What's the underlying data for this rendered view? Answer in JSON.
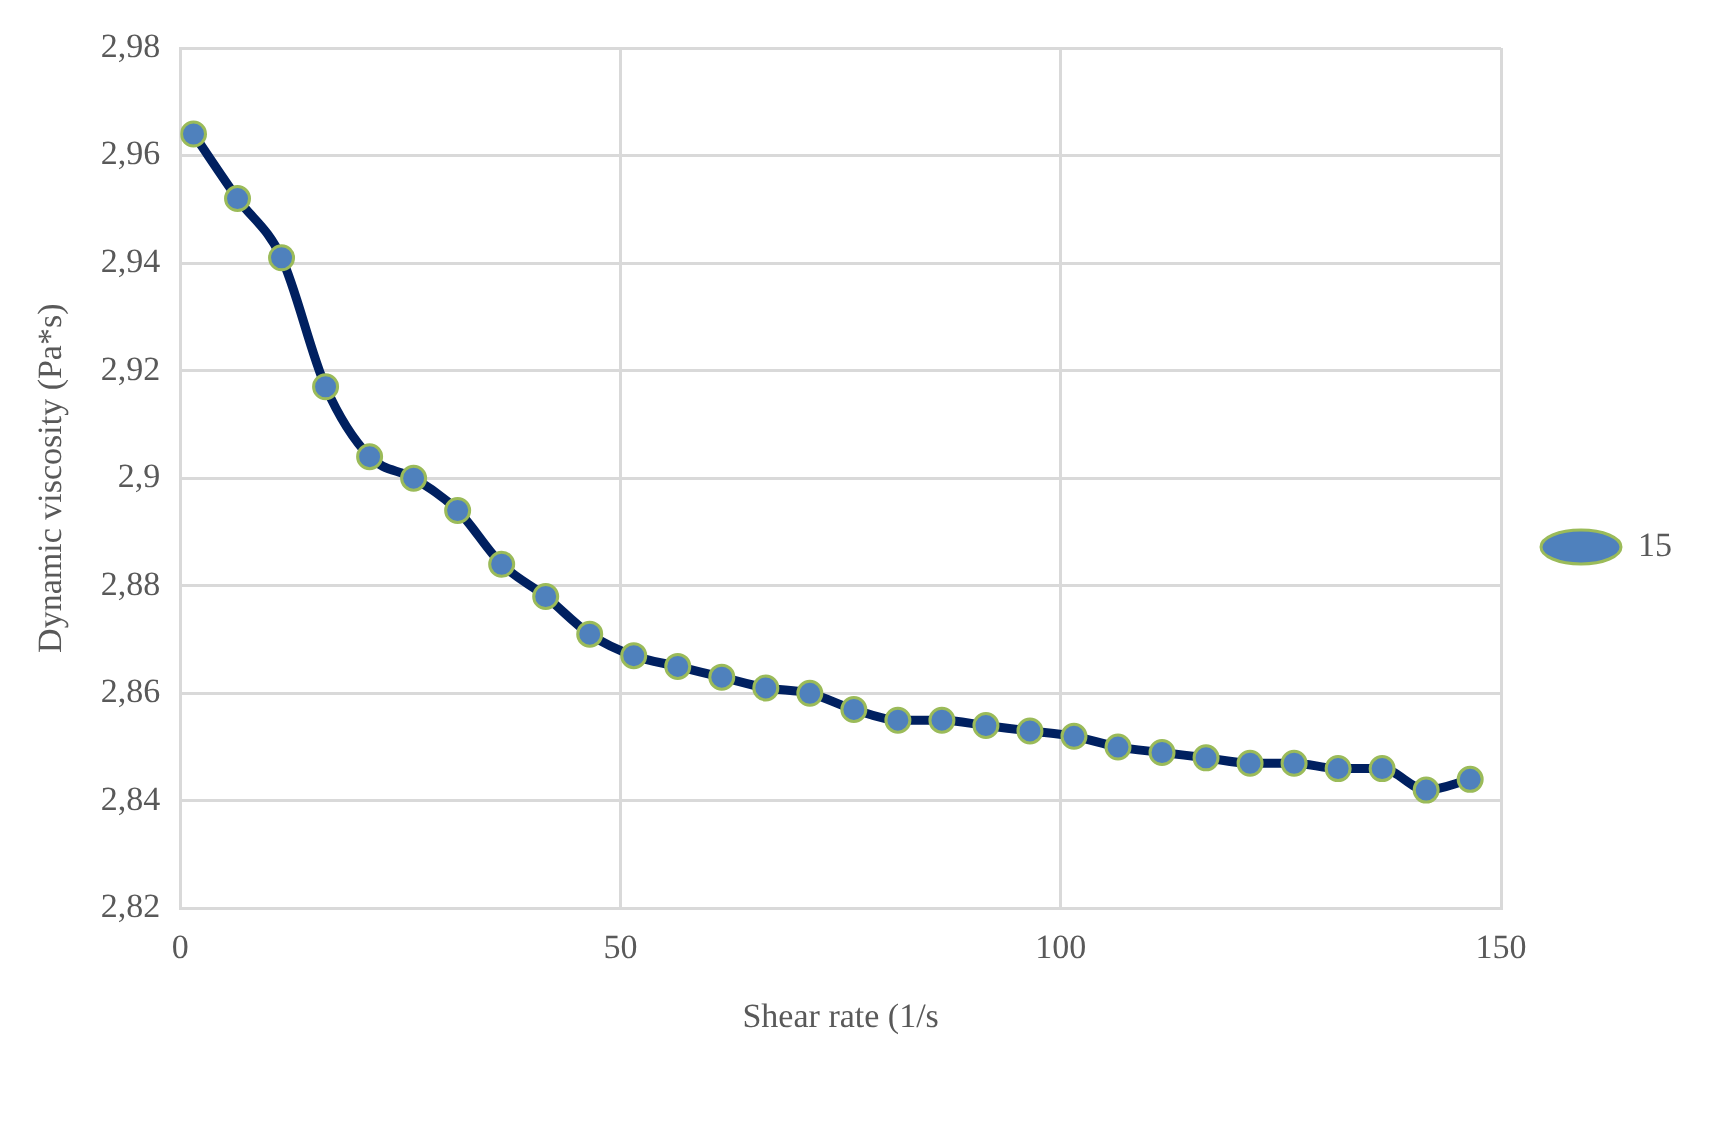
{
  "chart_data": {
    "type": "line",
    "xlabel": "Shear rate (1/s",
    "ylabel": "Dynamic viscosity (Pa*s)",
    "xlim": [
      0,
      150
    ],
    "xticks": [
      0,
      50,
      100,
      150
    ],
    "ylim": [
      2.82,
      2.98
    ],
    "yticks": [
      {
        "value": 2.82,
        "label": "2,82"
      },
      {
        "value": 2.84,
        "label": "2,84"
      },
      {
        "value": 2.86,
        "label": "2,86"
      },
      {
        "value": 2.88,
        "label": "2,88"
      },
      {
        "value": 2.9,
        "label": "2,9"
      },
      {
        "value": 2.92,
        "label": "2,92"
      },
      {
        "value": 2.94,
        "label": "2,94"
      },
      {
        "value": 2.96,
        "label": "2,96"
      },
      {
        "value": 2.98,
        "label": "2,98"
      }
    ],
    "grid": true,
    "legend": "right",
    "marker": "circle",
    "line_style": "solid",
    "x": [
      1.5,
      6.5,
      11.5,
      16.5,
      21.5,
      26.5,
      31.5,
      36.5,
      41.5,
      46.5,
      51.5,
      56.5,
      61.5,
      66.5,
      71.5,
      76.5,
      81.5,
      86.5,
      91.5,
      96.5,
      101.5,
      106.5,
      111.5,
      116.5,
      121.5,
      126.5,
      131.5,
      136.5,
      141.5,
      146.5
    ],
    "series": [
      {
        "name": "15",
        "color": "#002060",
        "values": [
          2.964,
          2.952,
          2.941,
          2.917,
          2.904,
          2.9,
          2.894,
          2.884,
          2.878,
          2.871,
          2.867,
          2.865,
          2.863,
          2.861,
          2.86,
          2.857,
          2.855,
          2.855,
          2.854,
          2.853,
          2.852,
          2.85,
          2.849,
          2.848,
          2.847,
          2.847,
          2.846,
          2.846,
          2.842,
          2.844
        ]
      }
    ]
  }
}
